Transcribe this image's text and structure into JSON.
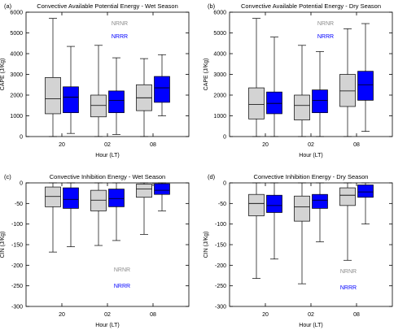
{
  "figure": {
    "colors": {
      "nrnr_fill": "#d3d3d3",
      "nrnr_text": "#8c8c8c",
      "nrrr_fill": "#0000ff",
      "nrrr_text": "#0000ff",
      "line": "#000000"
    }
  },
  "chart_data": [
    {
      "type": "box",
      "panel_label": "(a)",
      "title": "Convective Available Potential Energy - Wet Season",
      "xlabel": "Hour (LT)",
      "ylabel": "CAPE (J/Kg)",
      "categories": [
        "20",
        "02",
        "08"
      ],
      "ylim": [
        0,
        6000
      ],
      "yticks": [
        0,
        1000,
        2000,
        3000,
        4000,
        5000,
        6000
      ],
      "legend": [
        "NRNR",
        "NRRR"
      ],
      "legend_position": "top-center",
      "series": [
        {
          "name": "NRNR",
          "boxes": [
            {
              "whisker_low": 0,
              "q1": 1100,
              "median": 1820,
              "q3": 2850,
              "whisker_high": 5700
            },
            {
              "whisker_low": 0,
              "q1": 950,
              "median": 1500,
              "q3": 2000,
              "whisker_high": 4400
            },
            {
              "whisker_low": 0,
              "q1": 1250,
              "median": 1870,
              "q3": 2500,
              "whisker_high": 3760
            }
          ]
        },
        {
          "name": "NRRR",
          "boxes": [
            {
              "whisker_low": 150,
              "q1": 1150,
              "median": 1900,
              "q3": 2400,
              "whisker_high": 4350
            },
            {
              "whisker_low": 100,
              "q1": 1150,
              "median": 1750,
              "q3": 2200,
              "whisker_high": 3800
            },
            {
              "whisker_low": 1000,
              "q1": 1650,
              "median": 2350,
              "q3": 2900,
              "whisker_high": 3950
            }
          ]
        }
      ]
    },
    {
      "type": "box",
      "panel_label": "(b)",
      "title": "Convective Available Potential Energy - Dry Season",
      "xlabel": "Hour (LT)",
      "ylabel": "CAPE (J/Kg)",
      "categories": [
        "20",
        "02",
        "08"
      ],
      "ylim": [
        0,
        6000
      ],
      "yticks": [
        0,
        1000,
        2000,
        3000,
        4000,
        5000,
        6000
      ],
      "legend": [
        "NRNR",
        "NRRR"
      ],
      "legend_position": "top-center",
      "series": [
        {
          "name": "NRNR",
          "boxes": [
            {
              "whisker_low": 0,
              "q1": 850,
              "median": 1550,
              "q3": 2350,
              "whisker_high": 5700
            },
            {
              "whisker_low": 0,
              "q1": 800,
              "median": 1500,
              "q3": 2000,
              "whisker_high": 4400
            },
            {
              "whisker_low": 0,
              "q1": 1450,
              "median": 2200,
              "q3": 3000,
              "whisker_high": 5200
            }
          ]
        },
        {
          "name": "NRRR",
          "boxes": [
            {
              "whisker_low": 0,
              "q1": 1100,
              "median": 1600,
              "q3": 2150,
              "whisker_high": 4800
            },
            {
              "whisker_low": 0,
              "q1": 1150,
              "median": 1750,
              "q3": 2250,
              "whisker_high": 4100
            },
            {
              "whisker_low": 250,
              "q1": 1750,
              "median": 2500,
              "q3": 3150,
              "whisker_high": 5450
            }
          ]
        }
      ]
    },
    {
      "type": "box",
      "panel_label": "(c)",
      "title": "Convective Inhibition Energy - Wet Season",
      "xlabel": "Hour (LT)",
      "ylabel": "CIN (J/Kg)",
      "categories": [
        "20",
        "02",
        "08"
      ],
      "ylim": [
        -300,
        0
      ],
      "yticks": [
        0,
        -50,
        -100,
        -150,
        -200,
        -250,
        -300
      ],
      "legend": [
        "NRNR",
        "NRRR"
      ],
      "legend_position": "bottom-center",
      "series": [
        {
          "name": "NRNR",
          "boxes": [
            {
              "whisker_low": -168,
              "q1": -58,
              "median": -33,
              "q3": -10,
              "whisker_high": 0
            },
            {
              "whisker_low": -152,
              "q1": -68,
              "median": -42,
              "q3": -18,
              "whisker_high": 0
            },
            {
              "whisker_low": -125,
              "q1": -35,
              "median": -15,
              "q3": -3,
              "whisker_high": 0
            }
          ]
        },
        {
          "name": "NRRR",
          "boxes": [
            {
              "whisker_low": -155,
              "q1": -62,
              "median": -40,
              "q3": -12,
              "whisker_high": 0
            },
            {
              "whisker_low": -140,
              "q1": -58,
              "median": -38,
              "q3": -15,
              "whisker_high": 0
            },
            {
              "whisker_low": -68,
              "q1": -28,
              "median": -18,
              "q3": -2,
              "whisker_high": 0
            }
          ]
        }
      ]
    },
    {
      "type": "box",
      "panel_label": "(d)",
      "title": "Convective Inhibition Energy - Dry Season",
      "xlabel": "Hour (LT)",
      "ylabel": "CIN (J/Kg)",
      "categories": [
        "20",
        "02",
        "08"
      ],
      "ylim": [
        -300,
        0
      ],
      "yticks": [
        0,
        -50,
        -100,
        -150,
        -200,
        -250,
        -300
      ],
      "legend": [
        "NRNR",
        "NRRR"
      ],
      "legend_position": "bottom-right",
      "series": [
        {
          "name": "NRNR",
          "boxes": [
            {
              "whisker_low": -232,
              "q1": -80,
              "median": -50,
              "q3": -28,
              "whisker_high": 0
            },
            {
              "whisker_low": -245,
              "q1": -93,
              "median": -58,
              "q3": -32,
              "whisker_high": 0
            },
            {
              "whisker_low": -188,
              "q1": -55,
              "median": -30,
              "q3": -12,
              "whisker_high": 0
            }
          ]
        },
        {
          "name": "NRRR",
          "boxes": [
            {
              "whisker_low": -185,
              "q1": -72,
              "median": -55,
              "q3": -30,
              "whisker_high": 0
            },
            {
              "whisker_low": -143,
              "q1": -62,
              "median": -42,
              "q3": -28,
              "whisker_high": 0
            },
            {
              "whisker_low": -100,
              "q1": -35,
              "median": -22,
              "q3": -5,
              "whisker_high": 0
            }
          ]
        }
      ]
    }
  ]
}
